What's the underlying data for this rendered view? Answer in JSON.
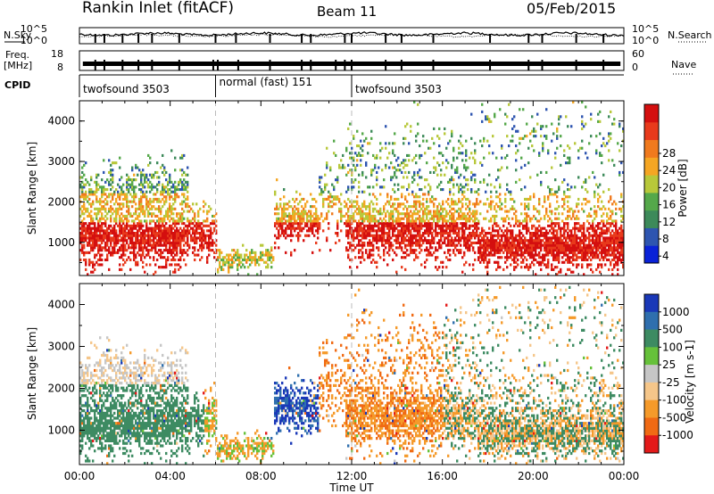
{
  "header": {
    "radar": "Rankin Inlet (fitACF)",
    "beam": "Beam 11",
    "date": "05/Feb/2015"
  },
  "top_panels": {
    "nsky_label": "N.Sky",
    "nsearch_label": "N.Search",
    "noise_ticks_left": [
      "10^5",
      "10^0"
    ],
    "noise_ticks_right": [
      "10^5",
      "10^0"
    ],
    "freq_label": [
      "Freq.",
      "[MHz]"
    ],
    "freq_ticks": [
      "18",
      "8"
    ],
    "nave_label": "Nave",
    "nave_ticks": [
      "60",
      "0"
    ],
    "cpid_label": "CPID",
    "cpid_segments": [
      {
        "start_h": 0.0,
        "end_h": 6.0,
        "label": "twofsound 3503"
      },
      {
        "start_h": 6.0,
        "end_h": 12.0,
        "label": "normal (fast) 151"
      },
      {
        "start_h": 12.0,
        "end_h": 24.0,
        "label": "twofsound 3503"
      }
    ]
  },
  "time_axis": {
    "label": "Time UT",
    "ticks": [
      "00:00",
      "04:00",
      "08:00",
      "12:00",
      "16:00",
      "20:00",
      "00:00"
    ],
    "range_hours": [
      0,
      24
    ]
  },
  "colorbars": {
    "power": {
      "title": "Power [dB]",
      "ticks": [
        "4",
        "8",
        "12",
        "16",
        "20",
        "24",
        "28"
      ],
      "colors": [
        "#0a22d8",
        "#2e55b0",
        "#3d8a5a",
        "#55a84a",
        "#b8c83a",
        "#f5a623",
        "#f07a1e",
        "#e83a1c",
        "#d40f0f"
      ]
    },
    "velocity": {
      "title": "Velocity [m s-1]",
      "ticks": [
        "1000",
        "500",
        "100",
        "25",
        "-25",
        "-100",
        "-500",
        "-1000"
      ],
      "colors": [
        "#1a38b8",
        "#2f6fae",
        "#3d8b62",
        "#66c13a",
        "#c6c6c6",
        "#f5c68a",
        "#f59a2a",
        "#f06a14",
        "#e31a1a"
      ]
    }
  },
  "chart_data": [
    {
      "type": "heatmap",
      "name": "Power",
      "xlabel": "Time UT",
      "ylabel": "Slant Range [km]",
      "ylim": [
        180,
        4500
      ],
      "yticks": [
        1000,
        2000,
        3000,
        4000
      ],
      "xlim_hours": [
        0,
        24
      ],
      "colorbar_label": "Power [dB]",
      "zlim": [
        0,
        32
      ]
    },
    {
      "type": "heatmap",
      "name": "Velocity",
      "xlabel": "Time UT",
      "ylabel": "Slant Range [km]",
      "ylim": [
        180,
        4500
      ],
      "yticks": [
        1000,
        2000,
        3000,
        4000
      ],
      "xlim_hours": [
        0,
        24
      ],
      "colorbar_label": "Velocity [m s-1]",
      "zlim": [
        -1000,
        1000
      ]
    }
  ]
}
